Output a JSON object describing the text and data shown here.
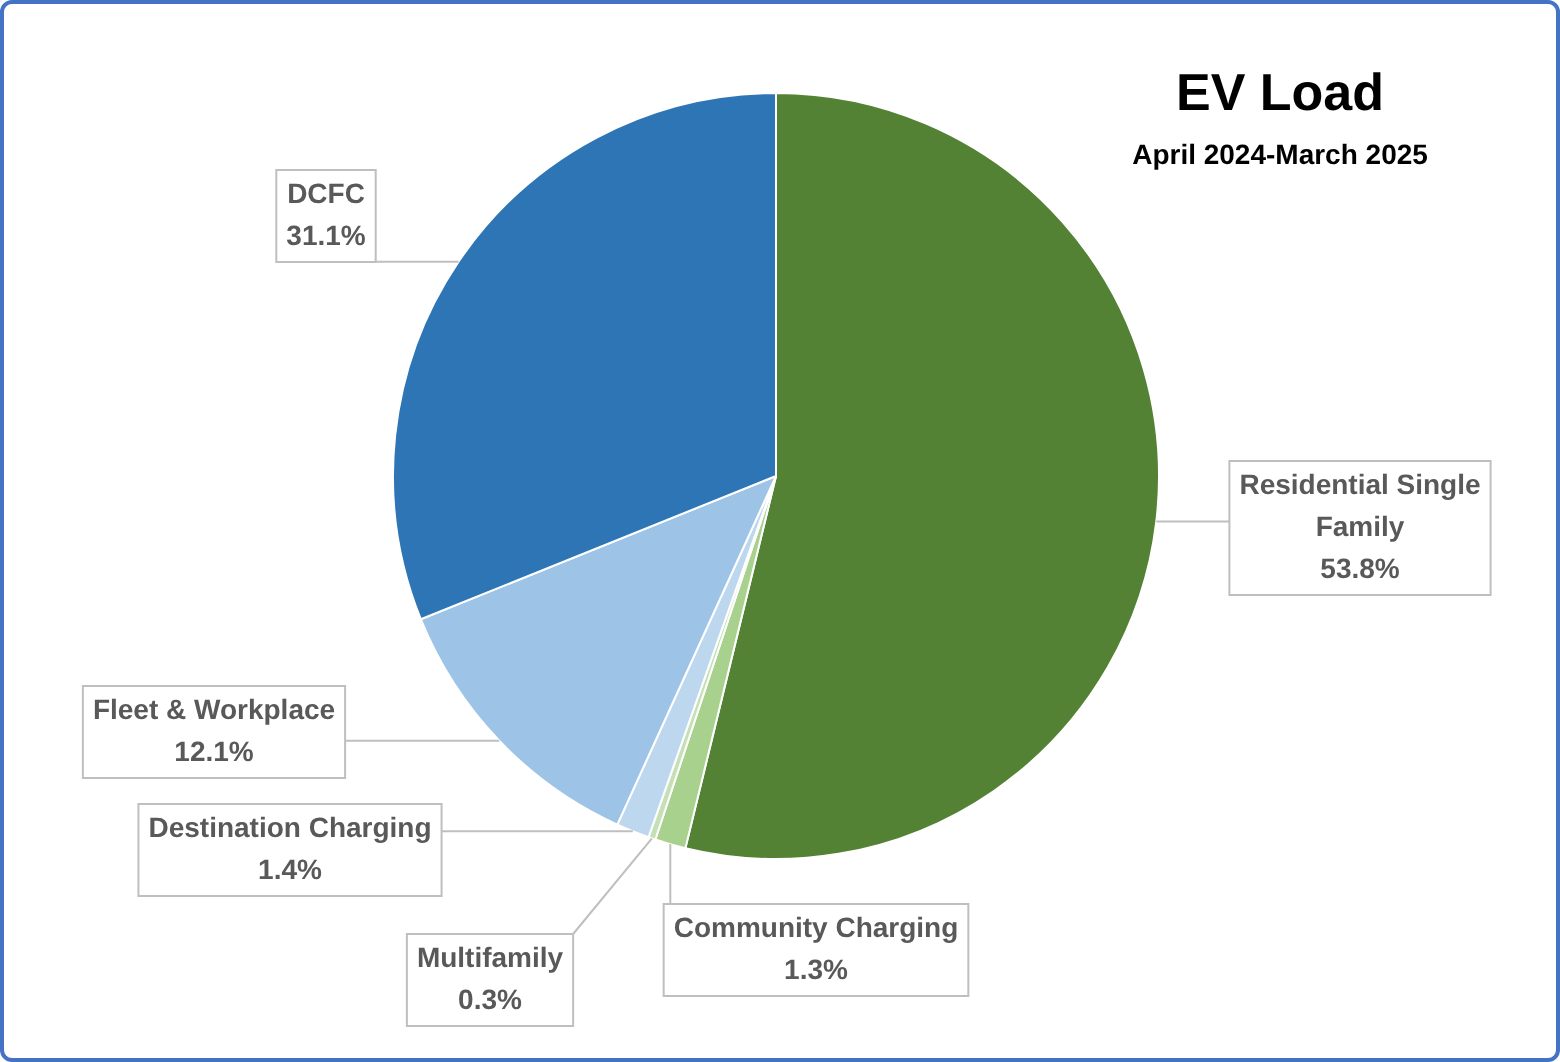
{
  "chart_data": {
    "type": "pie",
    "title": "EV Load",
    "subtitle": "April 2024-March 2025",
    "categories": [
      "Residential Single Family",
      "Community Charging",
      "Multifamily",
      "Destination Charging",
      "Fleet & Workplace",
      "DCFC"
    ],
    "values": [
      53.8,
      1.3,
      0.3,
      1.4,
      12.1,
      31.1
    ],
    "value_labels": [
      "53.8%",
      "1.3%",
      "0.3%",
      "1.4%",
      "12.1%",
      "31.1%"
    ],
    "colors": [
      "#548235",
      "#a9d18e",
      "#c5e0b4",
      "#bdd7ee",
      "#9dc3e6",
      "#2e75b6"
    ],
    "legend": false
  }
}
